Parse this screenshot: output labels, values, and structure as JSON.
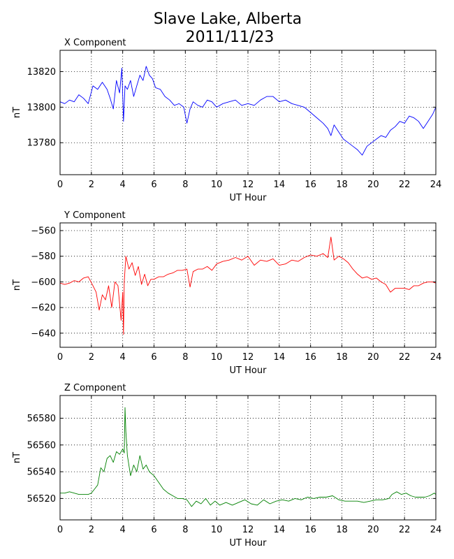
{
  "figure": {
    "title_line1": "Slave Lake, Alberta",
    "title_line2": "2011/11/23"
  },
  "chart_data": [
    {
      "type": "line",
      "title": "X Component",
      "xlabel": "UT Hour",
      "ylabel": "nT",
      "xlim": [
        0,
        24
      ],
      "ylim": [
        13762,
        13832
      ],
      "xticks": [
        0,
        2,
        4,
        6,
        8,
        10,
        12,
        14,
        16,
        18,
        20,
        22,
        24
      ],
      "yticks": [
        13780,
        13800,
        13820
      ],
      "grid": true,
      "color": "#0000ff",
      "series": [
        {
          "x": [
            0,
            0.3,
            0.6,
            0.9,
            1.2,
            1.5,
            1.8,
            2.1,
            2.4,
            2.7,
            3.0,
            3.2,
            3.4,
            3.6,
            3.8,
            3.95,
            4.05,
            4.15,
            4.3,
            4.5,
            4.7,
            4.9,
            5.1,
            5.3,
            5.5,
            5.7,
            5.9,
            6.1,
            6.4,
            6.7,
            7.0,
            7.3,
            7.6,
            7.9,
            8.1,
            8.3,
            8.5,
            8.8,
            9.1,
            9.4,
            9.7,
            10.0,
            10.4,
            10.8,
            11.2,
            11.6,
            12.0,
            12.4,
            12.8,
            13.2,
            13.6,
            14.0,
            14.4,
            14.8,
            15.2,
            15.6,
            16.0,
            16.4,
            16.8,
            17.1,
            17.3,
            17.5,
            17.8,
            18.1,
            18.4,
            18.7,
            19.0,
            19.3,
            19.6,
            19.9,
            20.2,
            20.5,
            20.8,
            21.1,
            21.4,
            21.7,
            22.0,
            22.3,
            22.6,
            22.9,
            23.2,
            23.5,
            23.8,
            24.0
          ],
          "values": [
            13803,
            13802,
            13804,
            13803,
            13807,
            13805,
            13802,
            13812,
            13810,
            13814,
            13810,
            13805,
            13799,
            13815,
            13808,
            13822,
            13792,
            13812,
            13810,
            13815,
            13806,
            13812,
            13818,
            13815,
            13823,
            13818,
            13816,
            13811,
            13810,
            13806,
            13804,
            13801,
            13802,
            13800,
            13791,
            13799,
            13803,
            13801,
            13800,
            13804,
            13803,
            13800,
            13802,
            13803,
            13804,
            13801,
            13802,
            13801,
            13804,
            13806,
            13806,
            13803,
            13804,
            13802,
            13801,
            13800,
            13797,
            13794,
            13791,
            13788,
            13784,
            13790,
            13786,
            13782,
            13780,
            13778,
            13776,
            13773,
            13778,
            13780,
            13782,
            13784,
            13783,
            13787,
            13789,
            13792,
            13791,
            13795,
            13794,
            13792,
            13788,
            13792,
            13796,
            13800
          ]
        }
      ]
    },
    {
      "type": "line",
      "title": "Y Component",
      "xlabel": "UT Hour",
      "ylabel": "nT",
      "xlim": [
        0,
        24
      ],
      "ylim": [
        -651,
        -554
      ],
      "xticks": [
        0,
        2,
        4,
        6,
        8,
        10,
        12,
        14,
        16,
        18,
        20,
        22,
        24
      ],
      "yticks": [
        -560,
        -580,
        -600,
        -620,
        -640
      ],
      "grid": true,
      "color": "#ff0000",
      "series": [
        {
          "x": [
            0,
            0.3,
            0.6,
            0.9,
            1.2,
            1.5,
            1.8,
            2.1,
            2.3,
            2.5,
            2.7,
            2.9,
            3.1,
            3.3,
            3.5,
            3.7,
            3.9,
            4.0,
            4.05,
            4.1,
            4.2,
            4.4,
            4.6,
            4.8,
            5.0,
            5.2,
            5.4,
            5.6,
            5.8,
            6.0,
            6.3,
            6.6,
            6.9,
            7.2,
            7.5,
            7.8,
            8.1,
            8.3,
            8.5,
            8.8,
            9.1,
            9.4,
            9.7,
            10.0,
            10.4,
            10.8,
            11.2,
            11.6,
            12.0,
            12.4,
            12.8,
            13.2,
            13.6,
            14.0,
            14.4,
            14.8,
            15.2,
            15.6,
            16.0,
            16.4,
            16.8,
            17.1,
            17.3,
            17.5,
            17.8,
            18.1,
            18.4,
            18.7,
            19.0,
            19.3,
            19.6,
            19.9,
            20.2,
            20.5,
            20.8,
            21.1,
            21.4,
            21.7,
            22.0,
            22.3,
            22.6,
            22.9,
            23.2,
            23.5,
            23.8,
            24.0
          ],
          "values": [
            -601,
            -602,
            -601,
            -599,
            -600,
            -597,
            -596,
            -603,
            -608,
            -622,
            -610,
            -614,
            -603,
            -620,
            -600,
            -603,
            -630,
            -608,
            -641,
            -600,
            -580,
            -590,
            -585,
            -595,
            -588,
            -602,
            -594,
            -603,
            -598,
            -598,
            -596,
            -596,
            -594,
            -593,
            -591,
            -591,
            -590,
            -604,
            -592,
            -590,
            -590,
            -588,
            -591,
            -586,
            -584,
            -583,
            -581,
            -583,
            -580,
            -587,
            -583,
            -584,
            -582,
            -587,
            -586,
            -583,
            -584,
            -581,
            -579,
            -580,
            -578,
            -581,
            -565,
            -583,
            -580,
            -582,
            -585,
            -590,
            -594,
            -597,
            -596,
            -598,
            -597,
            -600,
            -602,
            -608,
            -605,
            -605,
            -605,
            -606,
            -603,
            -603,
            -601,
            -600,
            -600,
            -601
          ]
        }
      ]
    },
    {
      "type": "line",
      "title": "Z Component",
      "xlabel": "UT Hour",
      "ylabel": "nT",
      "xlim": [
        0,
        24
      ],
      "ylim": [
        56504,
        56597
      ],
      "xticks": [
        0,
        2,
        4,
        6,
        8,
        10,
        12,
        14,
        16,
        18,
        20,
        22,
        24
      ],
      "yticks": [
        56520,
        56540,
        56560,
        56580
      ],
      "grid": true,
      "color": "#008000",
      "series": [
        {
          "x": [
            0,
            0.3,
            0.6,
            0.9,
            1.2,
            1.5,
            1.8,
            2.0,
            2.2,
            2.4,
            2.6,
            2.8,
            3.0,
            3.2,
            3.4,
            3.6,
            3.8,
            4.0,
            4.1,
            4.15,
            4.2,
            4.3,
            4.5,
            4.7,
            4.9,
            5.1,
            5.3,
            5.5,
            5.7,
            6.0,
            6.3,
            6.6,
            6.9,
            7.2,
            7.5,
            7.8,
            8.1,
            8.4,
            8.7,
            9.0,
            9.3,
            9.6,
            9.9,
            10.2,
            10.6,
            11.0,
            11.4,
            11.8,
            12.2,
            12.6,
            13.0,
            13.4,
            13.8,
            14.2,
            14.6,
            15.0,
            15.4,
            15.8,
            16.2,
            16.6,
            17.0,
            17.4,
            17.8,
            18.2,
            18.6,
            19.0,
            19.4,
            19.8,
            20.2,
            20.6,
            21.0,
            21.2,
            21.5,
            21.8,
            22.1,
            22.4,
            22.7,
            23.0,
            23.3,
            23.6,
            23.9,
            24.0
          ],
          "values": [
            56524,
            56524,
            56525,
            56524,
            56523,
            56523,
            56523,
            56524,
            56527,
            56530,
            56543,
            56540,
            56550,
            56552,
            56547,
            56555,
            56553,
            56557,
            56554,
            56588,
            56570,
            56552,
            56537,
            56545,
            56540,
            56552,
            56542,
            56545,
            56540,
            56537,
            56532,
            56527,
            56524,
            56522,
            56520,
            56520,
            56519,
            56514,
            56518,
            56516,
            56520,
            56515,
            56518,
            56515,
            56517,
            56515,
            56517,
            56519,
            56516,
            56515,
            56519,
            56516,
            56518,
            56519,
            56518,
            56520,
            56519,
            56521,
            56520,
            56521,
            56521,
            56522,
            56519,
            56518,
            56518,
            56518,
            56517,
            56518,
            56519,
            56519,
            56520,
            56523,
            56525,
            56523,
            56524,
            56522,
            56521,
            56521,
            56521,
            56522,
            56524,
            56523
          ]
        }
      ]
    }
  ]
}
